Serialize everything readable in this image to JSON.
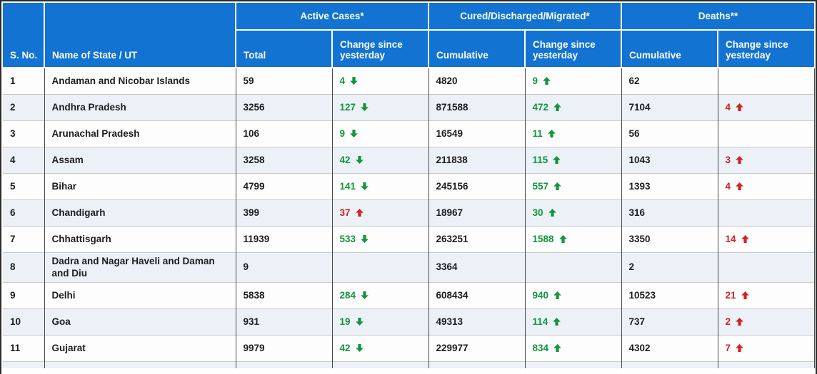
{
  "colors": {
    "header_bg": "#1273d2",
    "header_text": "#ffffff",
    "row_bg": "#fdfdfd",
    "row_alt_bg": "#ebf1f7",
    "green": "#12953d",
    "red": "#d42221",
    "body_text": "#1d1d1d",
    "outer_border": "#2b2b2b",
    "col_border": "#4a4a4a",
    "row_border": "#c9c9c9"
  },
  "table": {
    "header_groups": [
      {
        "label": "Active Cases*"
      },
      {
        "label": "Cured/Discharged/Migrated*"
      },
      {
        "label": "Deaths**"
      }
    ],
    "columns": [
      {
        "id": "sno",
        "label": "S. No."
      },
      {
        "id": "state",
        "label": "Name of State / UT"
      },
      {
        "id": "active_total",
        "label": "Total"
      },
      {
        "id": "active_change",
        "label": "Change since yesterday"
      },
      {
        "id": "cured_cumulative",
        "label": "Cumulative"
      },
      {
        "id": "cured_change",
        "label": "Change since yesterday"
      },
      {
        "id": "deaths_cumulative",
        "label": "Cumulative"
      },
      {
        "id": "deaths_change",
        "label": "Change since yesterday"
      }
    ],
    "rows": [
      {
        "sno": "1",
        "state": "Andaman and Nicobar Islands",
        "active_total": "59",
        "active_change": {
          "value": "4",
          "direction": "down",
          "color": "green"
        },
        "cured_cumulative": "4820",
        "cured_change": {
          "value": "9",
          "direction": "up",
          "color": "green"
        },
        "deaths_cumulative": "62",
        "deaths_change": null
      },
      {
        "sno": "2",
        "state": "Andhra Pradesh",
        "active_total": "3256",
        "active_change": {
          "value": "127",
          "direction": "down",
          "color": "green"
        },
        "cured_cumulative": "871588",
        "cured_change": {
          "value": "472",
          "direction": "up",
          "color": "green"
        },
        "deaths_cumulative": "7104",
        "deaths_change": {
          "value": "4",
          "direction": "up",
          "color": "red"
        }
      },
      {
        "sno": "3",
        "state": "Arunachal Pradesh",
        "active_total": "106",
        "active_change": {
          "value": "9",
          "direction": "down",
          "color": "green"
        },
        "cured_cumulative": "16549",
        "cured_change": {
          "value": "11",
          "direction": "up",
          "color": "green"
        },
        "deaths_cumulative": "56",
        "deaths_change": null
      },
      {
        "sno": "4",
        "state": "Assam",
        "active_total": "3258",
        "active_change": {
          "value": "42",
          "direction": "down",
          "color": "green"
        },
        "cured_cumulative": "211838",
        "cured_change": {
          "value": "115",
          "direction": "up",
          "color": "green"
        },
        "deaths_cumulative": "1043",
        "deaths_change": {
          "value": "3",
          "direction": "up",
          "color": "red"
        }
      },
      {
        "sno": "5",
        "state": "Bihar",
        "active_total": "4799",
        "active_change": {
          "value": "141",
          "direction": "down",
          "color": "green"
        },
        "cured_cumulative": "245156",
        "cured_change": {
          "value": "557",
          "direction": "up",
          "color": "green"
        },
        "deaths_cumulative": "1393",
        "deaths_change": {
          "value": "4",
          "direction": "up",
          "color": "red"
        }
      },
      {
        "sno": "6",
        "state": "Chandigarh",
        "active_total": "399",
        "active_change": {
          "value": "37",
          "direction": "up",
          "color": "red"
        },
        "cured_cumulative": "18967",
        "cured_change": {
          "value": "30",
          "direction": "up",
          "color": "green"
        },
        "deaths_cumulative": "316",
        "deaths_change": null
      },
      {
        "sno": "7",
        "state": "Chhattisgarh",
        "active_total": "11939",
        "active_change": {
          "value": "533",
          "direction": "down",
          "color": "green"
        },
        "cured_cumulative": "263251",
        "cured_change": {
          "value": "1588",
          "direction": "up",
          "color": "green"
        },
        "deaths_cumulative": "3350",
        "deaths_change": {
          "value": "14",
          "direction": "up",
          "color": "red"
        }
      },
      {
        "sno": "8",
        "state": "Dadra and Nagar Haveli and Daman and Diu",
        "active_total": "9",
        "active_change": null,
        "cured_cumulative": "3364",
        "cured_change": null,
        "deaths_cumulative": "2",
        "deaths_change": null
      },
      {
        "sno": "9",
        "state": "Delhi",
        "active_total": "5838",
        "active_change": {
          "value": "284",
          "direction": "down",
          "color": "green"
        },
        "cured_cumulative": "608434",
        "cured_change": {
          "value": "940",
          "direction": "up",
          "color": "green"
        },
        "deaths_cumulative": "10523",
        "deaths_change": {
          "value": "21",
          "direction": "up",
          "color": "red"
        }
      },
      {
        "sno": "10",
        "state": "Goa",
        "active_total": "931",
        "active_change": {
          "value": "19",
          "direction": "down",
          "color": "green"
        },
        "cured_cumulative": "49313",
        "cured_change": {
          "value": "114",
          "direction": "up",
          "color": "green"
        },
        "deaths_cumulative": "737",
        "deaths_change": {
          "value": "2",
          "direction": "up",
          "color": "red"
        }
      },
      {
        "sno": "11",
        "state": "Gujarat",
        "active_total": "9979",
        "active_change": {
          "value": "42",
          "direction": "down",
          "color": "green"
        },
        "cured_cumulative": "229977",
        "cured_change": {
          "value": "834",
          "direction": "up",
          "color": "green"
        },
        "deaths_cumulative": "4302",
        "deaths_change": {
          "value": "7",
          "direction": "up",
          "color": "red"
        }
      }
    ]
  }
}
